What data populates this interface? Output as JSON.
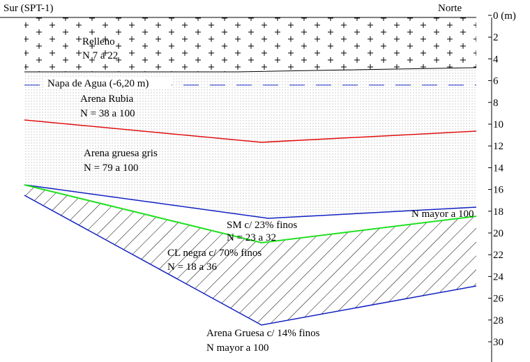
{
  "header": {
    "left": "Sur (SPT-1)",
    "right": "Norte"
  },
  "depth_axis": {
    "ticks": [
      "0 (m)",
      "2",
      "4",
      "6",
      "8",
      "10",
      "12",
      "14",
      "16",
      "18",
      "20",
      "22",
      "24",
      "26",
      "28",
      "30"
    ]
  },
  "water_table": "Napa de Agua (-6,20 m)",
  "layers": [
    {
      "name": "Relleno",
      "spt": "N 7 a 22"
    },
    {
      "name": "Arena Rubia",
      "spt": "N = 38 a 100"
    },
    {
      "name": "Arena gruesa gris",
      "spt": "N = 79 a 100"
    },
    {
      "name": "SM c/ 23% finos",
      "spt": "N = 23 a 32"
    },
    {
      "name": "CL negra c/ 70% finos",
      "spt": "N = 18 a 36"
    },
    {
      "name": "Arena Gruesa c/ 14% finos",
      "spt": "N mayor a 100"
    }
  ],
  "notes": [
    "N mayor a 100"
  ]
}
